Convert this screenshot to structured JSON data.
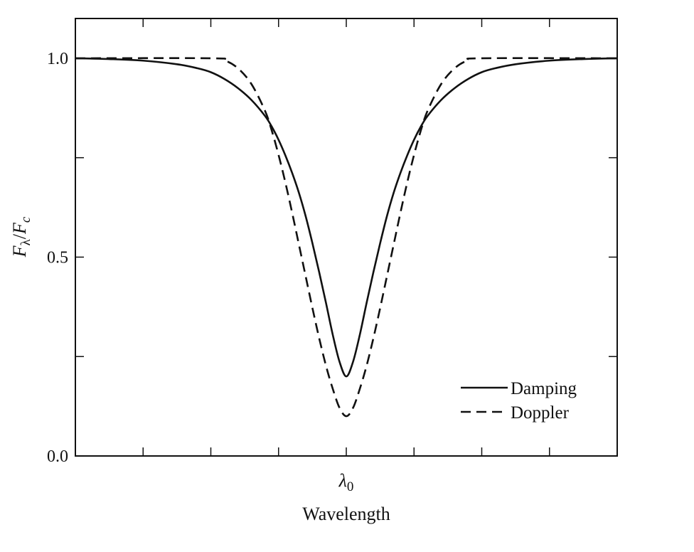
{
  "chart_data": {
    "type": "line",
    "title": "",
    "xlabel": "Wavelength",
    "ylabel_main": "F",
    "ylabel_sub1": "λ",
    "ylabel_sub2": "c",
    "ylabel_slash": "/",
    "xlim": [
      -4,
      4
    ],
    "ylim": [
      0,
      1.1
    ],
    "x_tick_label_main": "λ",
    "x_tick_label_sub": "0",
    "x_tick_value": 0,
    "x_minor_ticks": [
      -3,
      -2,
      -1,
      0,
      1,
      2,
      3
    ],
    "y_tick_labels": [
      "0.0",
      "0.5",
      "1.0"
    ],
    "y_tick_values": [
      0,
      0.5,
      1.0
    ],
    "y_minor_ticks": [
      0.25,
      0.75
    ],
    "grid": false,
    "legend_position": "bottom-right",
    "series": [
      {
        "name": "Damping",
        "style": "solid",
        "x": [
          -4,
          -3.5,
          -3,
          -2.5,
          -2.2,
          -2.0,
          -1.8,
          -1.6,
          -1.4,
          -1.2,
          -1.1,
          -1.0,
          -0.9,
          -0.8,
          -0.7,
          -0.6,
          -0.5,
          -0.4,
          -0.3,
          -0.2,
          -0.1,
          0,
          0.1,
          0.2,
          0.3,
          0.4,
          0.5,
          0.6,
          0.7,
          0.8,
          0.9,
          1.0,
          1.1,
          1.2,
          1.4,
          1.6,
          1.8,
          2.0,
          2.2,
          2.5,
          3,
          3.5,
          4
        ],
        "values": [
          1.0,
          0.998,
          0.994,
          0.985,
          0.975,
          0.965,
          0.948,
          0.925,
          0.895,
          0.855,
          0.828,
          0.795,
          0.756,
          0.712,
          0.662,
          0.603,
          0.535,
          0.462,
          0.385,
          0.305,
          0.237,
          0.2,
          0.237,
          0.305,
          0.385,
          0.462,
          0.535,
          0.603,
          0.662,
          0.712,
          0.756,
          0.795,
          0.828,
          0.855,
          0.895,
          0.925,
          0.948,
          0.965,
          0.975,
          0.985,
          0.994,
          0.998,
          1.0
        ]
      },
      {
        "name": "Doppler",
        "style": "dashed",
        "x": [
          -4,
          -2.0,
          -1.8,
          -1.6,
          -1.4,
          -1.2,
          -1.1,
          -1.0,
          -0.9,
          -0.8,
          -0.7,
          -0.6,
          -0.5,
          -0.4,
          -0.3,
          -0.2,
          -0.1,
          0,
          0.1,
          0.2,
          0.3,
          0.4,
          0.5,
          0.6,
          0.7,
          0.8,
          0.9,
          1.0,
          1.1,
          1.2,
          1.4,
          1.6,
          1.8,
          2.0,
          4
        ],
        "values": [
          1.0,
          1.0,
          0.995,
          0.975,
          0.935,
          0.868,
          0.818,
          0.757,
          0.688,
          0.612,
          0.532,
          0.452,
          0.372,
          0.296,
          0.227,
          0.169,
          0.121,
          0.1,
          0.121,
          0.169,
          0.227,
          0.296,
          0.372,
          0.452,
          0.532,
          0.612,
          0.688,
          0.757,
          0.818,
          0.868,
          0.935,
          0.975,
          0.995,
          1.0,
          1.0
        ]
      }
    ]
  }
}
